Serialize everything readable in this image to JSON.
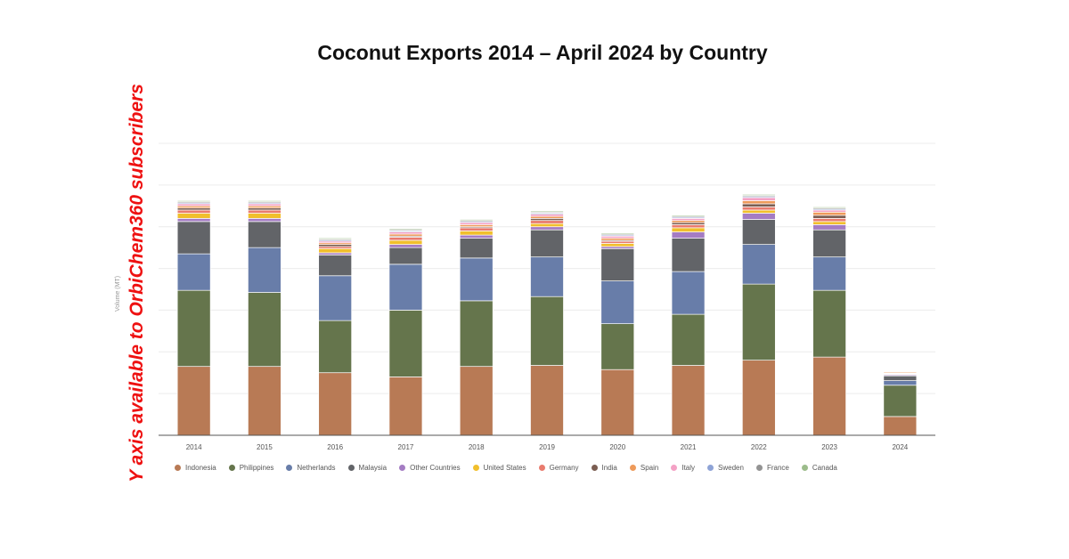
{
  "chart_data": {
    "type": "bar",
    "stacked": true,
    "title": "Coconut Exports 2014 – April 2024 by Country",
    "ylabel": "Volume (MT)",
    "xlabel": "",
    "ylim": [
      0,
      14
    ],
    "grid": true,
    "legend_position": "bottom",
    "annotation": "Y axis available to OrbiChem360 subscribers",
    "categories": [
      "2014",
      "2015",
      "2016",
      "2017",
      "2018",
      "2019",
      "2020",
      "2021",
      "2022",
      "2023",
      "2024"
    ],
    "series": [
      {
        "name": "Indonesia",
        "color": "#b87a55",
        "values": [
          3.3,
          3.3,
          3.0,
          2.8,
          3.3,
          3.35,
          3.15,
          3.35,
          3.6,
          3.75,
          0.9
        ]
      },
      {
        "name": "Philippines",
        "color": "#65754c",
        "values": [
          3.65,
          3.55,
          2.5,
          3.2,
          3.15,
          3.3,
          2.2,
          2.45,
          3.65,
          3.2,
          1.5
        ]
      },
      {
        "name": "Netherlands",
        "color": "#687da9",
        "values": [
          1.75,
          2.15,
          2.15,
          2.2,
          2.05,
          1.9,
          2.05,
          2.05,
          1.9,
          1.6,
          0.22
        ]
      },
      {
        "name": "Malaysia",
        "color": "#626468",
        "values": [
          1.55,
          1.25,
          1.0,
          0.8,
          0.95,
          1.3,
          1.55,
          1.6,
          1.2,
          1.3,
          0.23
        ]
      },
      {
        "name": "Other Countries",
        "color": "#a47cc3",
        "values": [
          0.15,
          0.15,
          0.1,
          0.15,
          0.15,
          0.15,
          0.1,
          0.3,
          0.3,
          0.25,
          0.05
        ]
      },
      {
        "name": "United States",
        "color": "#f1bf2c",
        "values": [
          0.25,
          0.25,
          0.2,
          0.2,
          0.2,
          0.15,
          0.15,
          0.2,
          0.15,
          0.15,
          0.03
        ]
      },
      {
        "name": "Germany",
        "color": "#e97b6e",
        "values": [
          0.15,
          0.15,
          0.1,
          0.15,
          0.15,
          0.15,
          0.1,
          0.15,
          0.15,
          0.15,
          0.03
        ]
      },
      {
        "name": "India",
        "color": "#7b5e52",
        "values": [
          0.1,
          0.1,
          0.1,
          0.05,
          0.05,
          0.1,
          0.05,
          0.1,
          0.15,
          0.15,
          0.02
        ]
      },
      {
        "name": "Spain",
        "color": "#ee9a5a",
        "values": [
          0.1,
          0.1,
          0.08,
          0.1,
          0.1,
          0.1,
          0.1,
          0.1,
          0.15,
          0.15,
          0.05
        ]
      },
      {
        "name": "Italy",
        "color": "#f4a1c5",
        "values": [
          0.1,
          0.1,
          0.08,
          0.1,
          0.1,
          0.1,
          0.1,
          0.1,
          0.15,
          0.1,
          0.03
        ]
      },
      {
        "name": "Sweden",
        "color": "#8ea3d6",
        "values": [
          0.05,
          0.05,
          0.05,
          0.05,
          0.05,
          0.05,
          0.05,
          0.05,
          0.05,
          0.05,
          0.01
        ]
      },
      {
        "name": "France",
        "color": "#939393",
        "values": [
          0.05,
          0.05,
          0.05,
          0.05,
          0.05,
          0.05,
          0.05,
          0.05,
          0.05,
          0.05,
          0.01
        ]
      },
      {
        "name": "Canada",
        "color": "#9cbc8b",
        "values": [
          0.05,
          0.05,
          0.05,
          0.05,
          0.05,
          0.05,
          0.05,
          0.05,
          0.05,
          0.05,
          0.01
        ]
      }
    ]
  }
}
